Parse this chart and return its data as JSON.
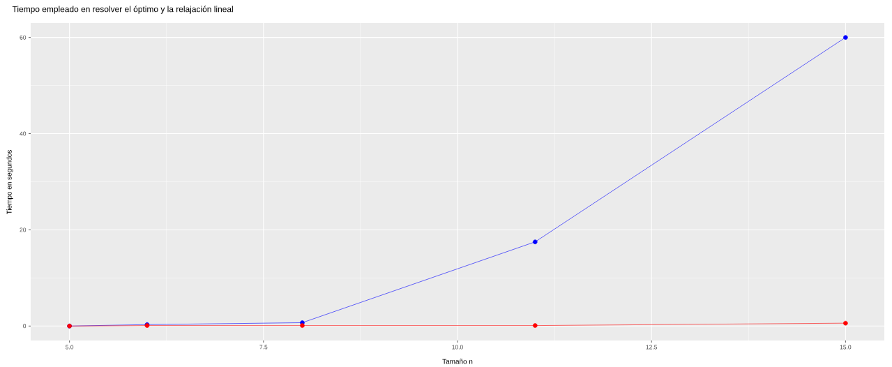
{
  "chart_data": {
    "type": "line",
    "title": "Tiempo empleado en resolver el óptimo y la relajación lineal",
    "xlabel": "Tamaño n",
    "ylabel": "Tiempo en segundos",
    "x": [
      5,
      6,
      8,
      11,
      15
    ],
    "series": [
      {
        "color": "#0000ff",
        "values": [
          0.0,
          0.3,
          0.7,
          17.5,
          60
        ]
      },
      {
        "color": "#ff0000",
        "values": [
          0.0,
          0.1,
          0.1,
          0.1,
          0.6
        ]
      }
    ],
    "xlim": [
      4.5,
      15.5
    ],
    "ylim": [
      -3,
      63
    ],
    "xticks": [
      {
        "value": 5,
        "label": "5.0"
      },
      {
        "value": 7.5,
        "label": "7.5"
      },
      {
        "value": 10,
        "label": "10.0"
      },
      {
        "value": 12.5,
        "label": "12.5"
      },
      {
        "value": 15,
        "label": "15.0"
      }
    ],
    "yticks": [
      0,
      20,
      40,
      60
    ],
    "grid": true,
    "marker": "circle",
    "line_style": "solid"
  }
}
